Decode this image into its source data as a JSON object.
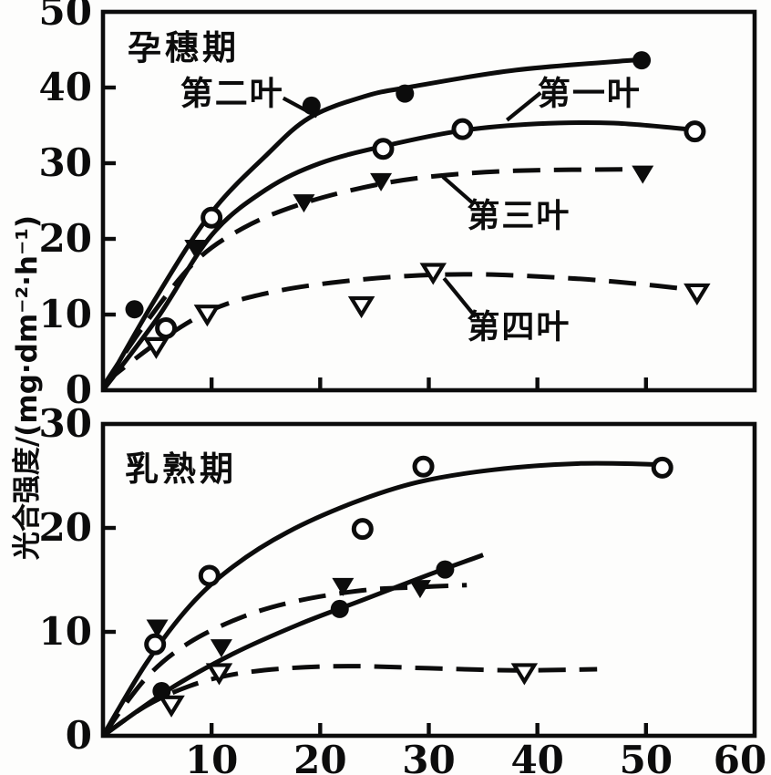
{
  "figure": {
    "y_axis_title": "光合强度/(mg·dm⁻²·h⁻¹)"
  },
  "chart_data": [
    {
      "type": "line",
      "title": "孕穗期",
      "xlabel": "",
      "ylabel": "光合强度/(mg·dm⁻²·h⁻¹)",
      "xlim": [
        0,
        60
      ],
      "ylim": [
        0,
        50
      ],
      "x_ticks": [
        10,
        20,
        30,
        40,
        50
      ],
      "x_tick_labels_visible": false,
      "y_ticks": [
        0,
        10,
        20,
        30,
        40,
        50
      ],
      "grid": false,
      "legend": "inline-labels-with-leader-lines",
      "series": [
        {
          "name": "第二叶",
          "marker": "filled-circle",
          "line": "solid",
          "points": [
            [
              2.9,
              10.7
            ],
            [
              19.2,
              37.6
            ],
            [
              27.8,
              39.2
            ],
            [
              49.6,
              43.6
            ]
          ],
          "curve": [
            [
              0,
              0
            ],
            [
              5,
              12.5
            ],
            [
              10,
              23.5
            ],
            [
              15,
              31
            ],
            [
              19,
              36
            ],
            [
              24,
              38.8
            ],
            [
              28,
              40
            ],
            [
              38,
              42.3
            ],
            [
              49.6,
              43.7
            ]
          ]
        },
        {
          "name": "第一叶",
          "marker": "open-circle",
          "line": "solid",
          "points": [
            [
              5.8,
              8.2
            ],
            [
              10,
              22.8
            ],
            [
              25.8,
              31.9
            ],
            [
              33.1,
              34.5
            ],
            [
              54.5,
              34.2
            ]
          ],
          "curve": [
            [
              0,
              0
            ],
            [
              5,
              9.5
            ],
            [
              10,
              20.5
            ],
            [
              15,
              26.5
            ],
            [
              20,
              30
            ],
            [
              26,
              32.3
            ],
            [
              33,
              34.3
            ],
            [
              40,
              35.2
            ],
            [
              47,
              35.3
            ],
            [
              54.5,
              34.4
            ]
          ]
        },
        {
          "name": "第三叶",
          "marker": "filled-triangle",
          "line": "dashed",
          "points": [
            [
              8.5,
              18.8
            ],
            [
              18.5,
              24.8
            ],
            [
              25.6,
              27.6
            ],
            [
              49.7,
              28.6
            ]
          ],
          "curve": [
            [
              0,
              0.5
            ],
            [
              4,
              9
            ],
            [
              8.5,
              17
            ],
            [
              13,
              21.5
            ],
            [
              18,
              24.5
            ],
            [
              24,
              26.8
            ],
            [
              30,
              28.2
            ],
            [
              38,
              29
            ],
            [
              49.7,
              29.2
            ]
          ]
        },
        {
          "name": "第四叶",
          "marker": "open-triangle",
          "line": "dashed",
          "points": [
            [
              4.9,
              5.8
            ],
            [
              9.6,
              10.1
            ],
            [
              23.8,
              11.2
            ],
            [
              30.4,
              15.6
            ],
            [
              54.7,
              12.9
            ]
          ],
          "curve": [
            [
              0,
              0.8
            ],
            [
              5,
              6.3
            ],
            [
              10,
              10.6
            ],
            [
              15,
              12.8
            ],
            [
              21,
              14.2
            ],
            [
              28,
              15.1
            ],
            [
              35,
              15.3
            ],
            [
              43,
              14.8
            ],
            [
              49,
              14.1
            ],
            [
              54.8,
              13.2
            ]
          ]
        }
      ],
      "annotations": [
        {
          "text": "第二叶",
          "tx": 11.9,
          "ty": 39.2,
          "leader": [
            [
              16.6,
              38.6
            ],
            [
              19.7,
              36.2
            ]
          ]
        },
        {
          "text": "第一叶",
          "tx": 44.8,
          "ty": 39.2,
          "leader": [
            [
              40.3,
              39.3
            ],
            [
              37.2,
              35.7
            ]
          ]
        },
        {
          "text": "第三叶",
          "tx": 38.3,
          "ty": 23.1,
          "leader": [
            [
              34.0,
              24.8
            ],
            [
              31.3,
              28.2
            ]
          ]
        },
        {
          "text": "第四叶",
          "tx": 38.3,
          "ty": 8.4,
          "leader": [
            [
              34.3,
              9.7
            ],
            [
              31.4,
              14.8
            ]
          ]
        }
      ]
    },
    {
      "type": "line",
      "title": "乳熟期",
      "xlabel": "",
      "ylabel": "光合强度/(mg·dm⁻²·h⁻¹)",
      "xlim": [
        0,
        60
      ],
      "ylim": [
        0,
        30
      ],
      "x_ticks": [
        10,
        20,
        30,
        40,
        50,
        60
      ],
      "x_tick_labels_visible": true,
      "x_tick_labels": [
        "10",
        "20",
        "30",
        "40",
        "50",
        "60"
      ],
      "y_ticks": [
        0,
        10,
        20,
        30
      ],
      "grid": false,
      "series": [
        {
          "name": "第一叶",
          "marker": "open-circle",
          "line": "solid",
          "points": [
            [
              4.8,
              8.8
            ],
            [
              9.8,
              15.4
            ],
            [
              23.9,
              19.9
            ],
            [
              29.5,
              25.9
            ],
            [
              51.5,
              25.8
            ]
          ],
          "curve": [
            [
              0,
              0
            ],
            [
              4,
              7
            ],
            [
              8,
              12.5
            ],
            [
              12,
              16.3
            ],
            [
              17,
              19.6
            ],
            [
              23,
              22.4
            ],
            [
              29,
              24.4
            ],
            [
              36,
              25.6
            ],
            [
              44,
              26.2
            ],
            [
              51.5,
              26.1
            ]
          ]
        },
        {
          "name": "第三叶",
          "marker": "filled-triangle",
          "line": "dashed",
          "points": [
            [
              5,
              10.4
            ],
            [
              10.9,
              8.5
            ],
            [
              22.1,
              14.4
            ],
            [
              29.2,
              14.2
            ]
          ],
          "curve": [
            [
              0,
              0
            ],
            [
              4,
              5.6
            ],
            [
              8,
              9
            ],
            [
              13,
              11.5
            ],
            [
              18,
              13
            ],
            [
              24,
              14
            ],
            [
              29,
              14.3
            ],
            [
              33.5,
              14.5
            ]
          ]
        },
        {
          "name": "第二叶",
          "marker": "filled-circle",
          "line": "solid",
          "points": [
            [
              5.4,
              4.3
            ],
            [
              21.8,
              12.2
            ],
            [
              31.5,
              16.0
            ]
          ],
          "curve": [
            [
              0,
              0
            ],
            [
              6,
              4.4
            ],
            [
              12,
              7.9
            ],
            [
              18,
              10.7
            ],
            [
              24,
              13.1
            ],
            [
              30,
              15.5
            ],
            [
              35,
              17.4
            ]
          ]
        },
        {
          "name": "第四叶",
          "marker": "open-triangle",
          "line": "dashed",
          "points": [
            [
              6.3,
              3.0
            ],
            [
              10.7,
              6.1
            ],
            [
              38.8,
              6.1
            ]
          ],
          "curve": [
            [
              0,
              0
            ],
            [
              4,
              2.9
            ],
            [
              8,
              4.8
            ],
            [
              12,
              5.9
            ],
            [
              17,
              6.5
            ],
            [
              23,
              6.7
            ],
            [
              30,
              6.5
            ],
            [
              38,
              6.3
            ],
            [
              45.5,
              6.4
            ]
          ]
        }
      ],
      "annotations": []
    }
  ]
}
